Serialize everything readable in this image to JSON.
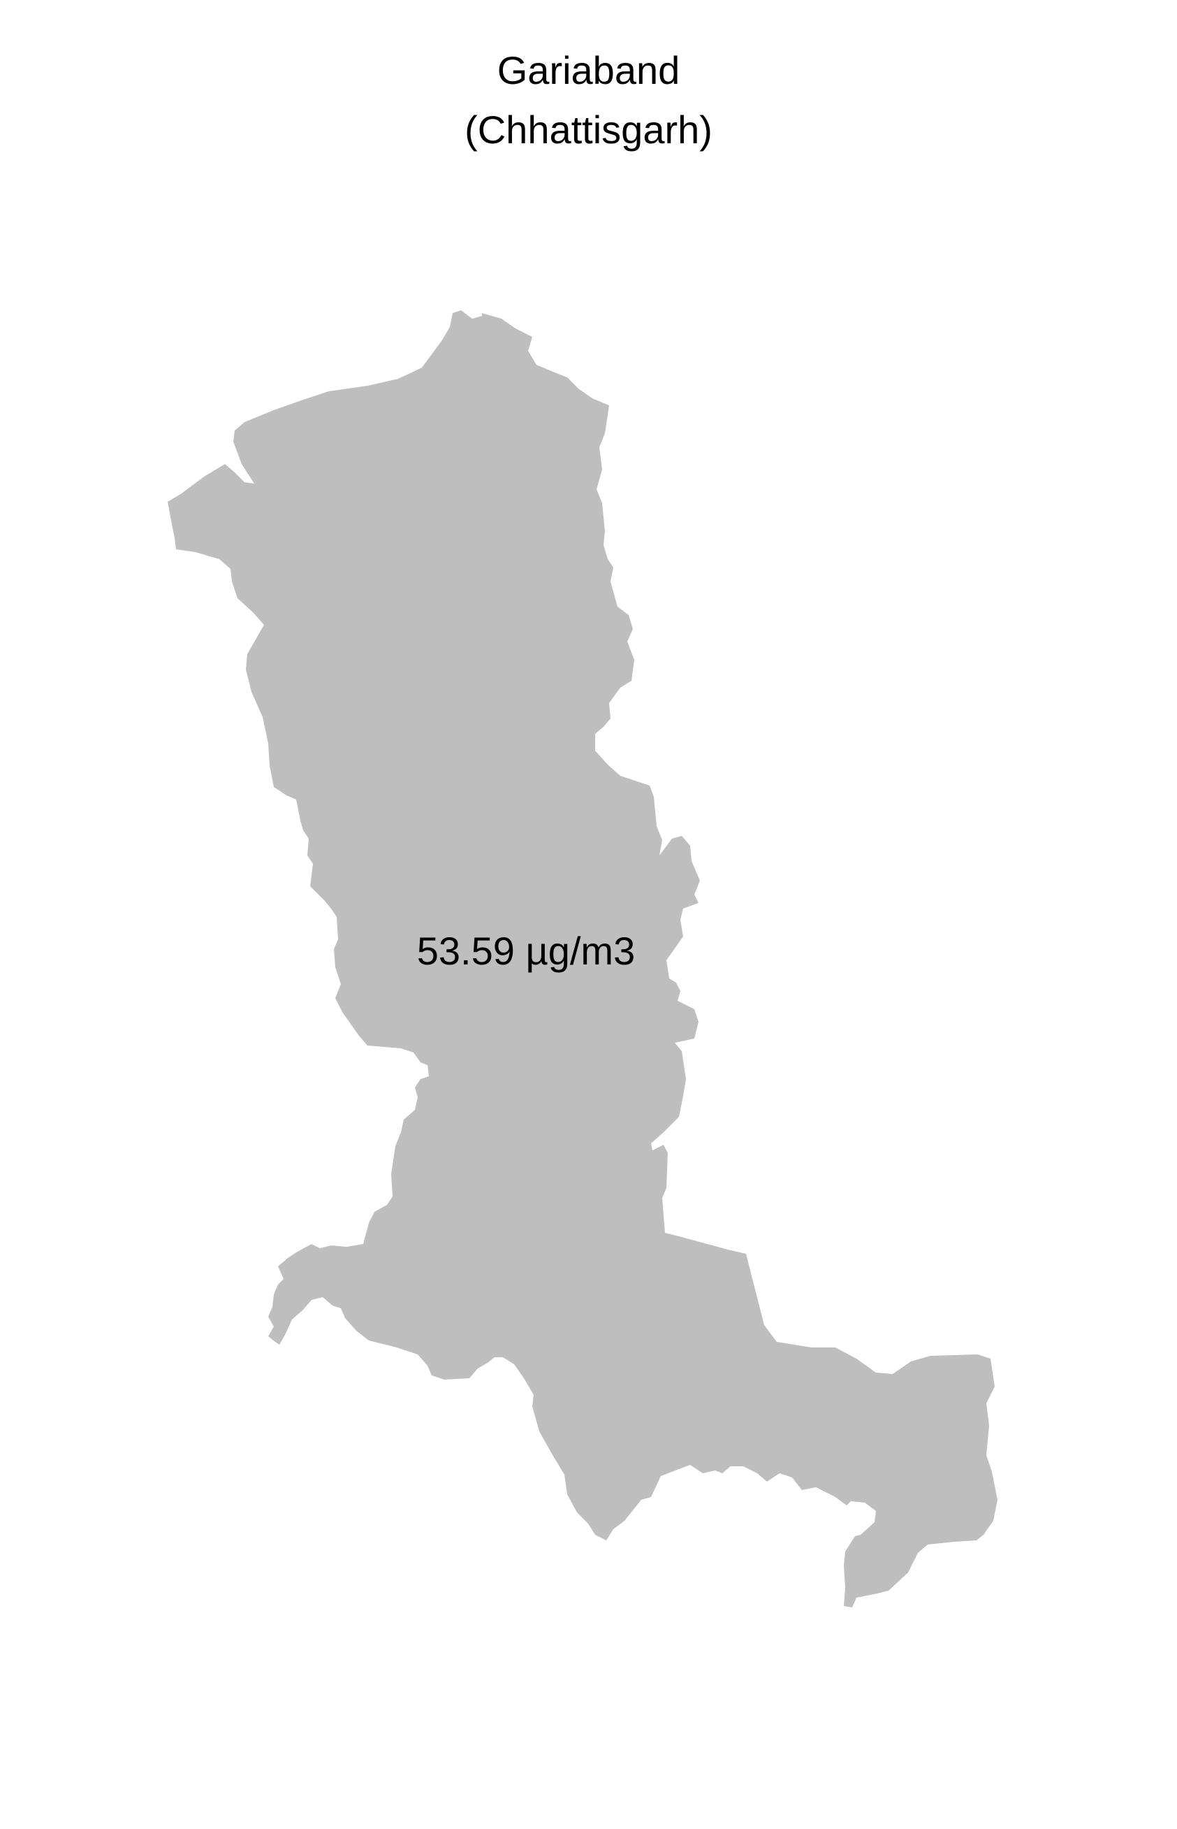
{
  "title": {
    "line1": "Gariaband",
    "line2": "(Chhattisgarh)"
  },
  "region": {
    "name": "Gariaband",
    "value_label": "53.59 µg/m3",
    "fill_color": "#bebebe",
    "background_color": "#ffffff"
  }
}
